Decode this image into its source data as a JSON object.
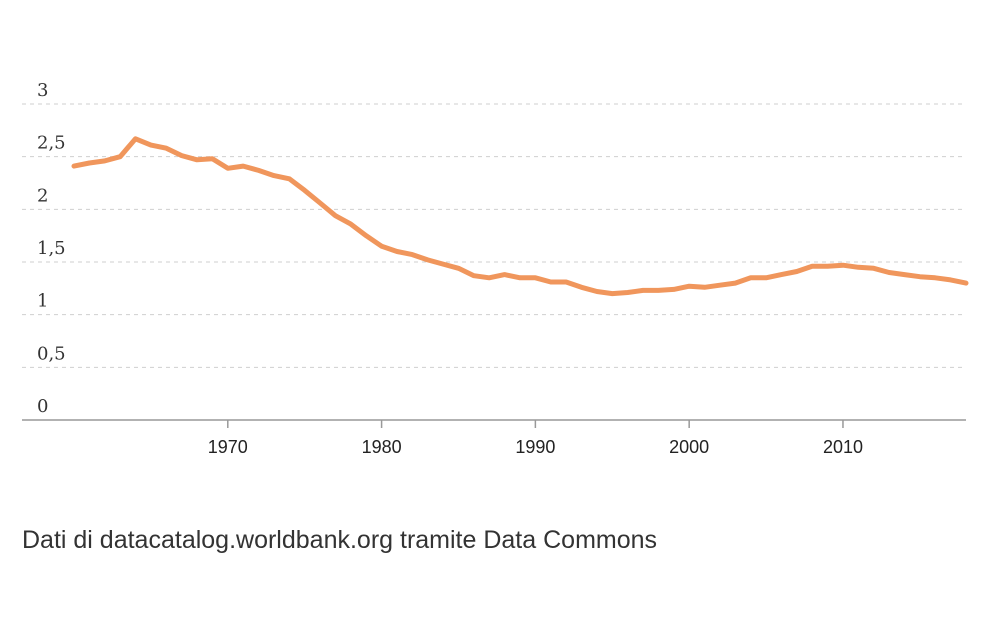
{
  "chart_data": {
    "type": "line",
    "title": "",
    "xlabel": "",
    "ylabel": "",
    "xlim": [
      1960,
      2018
    ],
    "ylim": [
      0,
      3
    ],
    "y_ticks": [
      0,
      0.5,
      1,
      1.5,
      2,
      2.5,
      3
    ],
    "y_tick_labels": [
      "0",
      "0,5",
      "1",
      "1,5",
      "2",
      "2,5",
      "3"
    ],
    "x_ticks": [
      1970,
      1980,
      1990,
      2000,
      2010
    ],
    "x_tick_labels": [
      "1970",
      "1980",
      "1990",
      "2000",
      "2010"
    ],
    "grid": true,
    "colors": {
      "line": "#f0965c"
    },
    "x": [
      1960,
      1961,
      1962,
      1963,
      1964,
      1965,
      1966,
      1967,
      1968,
      1969,
      1970,
      1971,
      1972,
      1973,
      1974,
      1975,
      1976,
      1977,
      1978,
      1979,
      1980,
      1981,
      1982,
      1983,
      1984,
      1985,
      1986,
      1987,
      1988,
      1989,
      1990,
      1991,
      1992,
      1993,
      1994,
      1995,
      1996,
      1997,
      1998,
      1999,
      2000,
      2001,
      2002,
      2003,
      2004,
      2005,
      2006,
      2007,
      2008,
      2009,
      2010,
      2011,
      2012,
      2013,
      2014,
      2015,
      2016,
      2017,
      2018
    ],
    "series": [
      {
        "values": [
          2.41,
          2.44,
          2.46,
          2.5,
          2.67,
          2.61,
          2.58,
          2.51,
          2.47,
          2.48,
          2.39,
          2.41,
          2.37,
          2.32,
          2.29,
          2.18,
          2.06,
          1.94,
          1.86,
          1.75,
          1.65,
          1.6,
          1.57,
          1.52,
          1.48,
          1.44,
          1.37,
          1.35,
          1.38,
          1.35,
          1.35,
          1.31,
          1.31,
          1.26,
          1.22,
          1.2,
          1.21,
          1.23,
          1.23,
          1.24,
          1.27,
          1.26,
          1.28,
          1.3,
          1.35,
          1.35,
          1.38,
          1.41,
          1.46,
          1.46,
          1.47,
          1.45,
          1.44,
          1.4,
          1.38,
          1.36,
          1.35,
          1.33,
          1.3
        ]
      }
    ]
  },
  "footer": {
    "source": "Dati di datacatalog.worldbank.org tramite Data Commons"
  }
}
